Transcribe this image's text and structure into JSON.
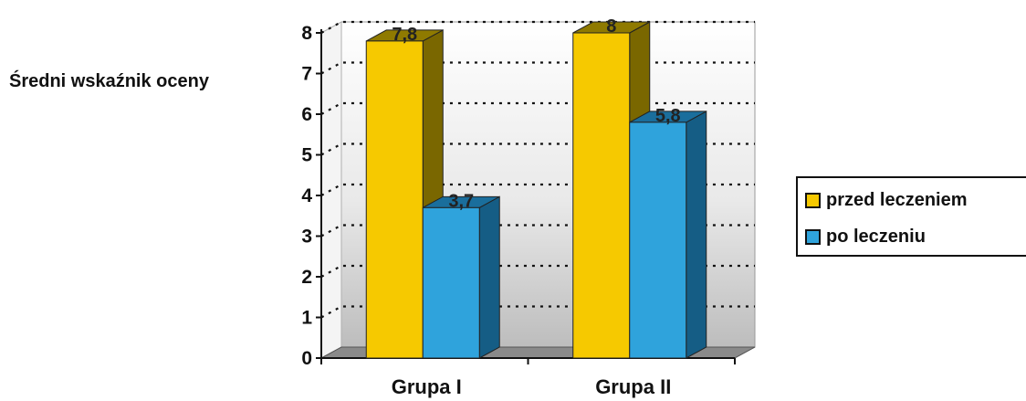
{
  "colors": {
    "before": "#f6c900",
    "after": "#2fa3dc"
  },
  "chart_data": {
    "type": "bar",
    "categories": [
      "Grupa I",
      "Grupa II"
    ],
    "series": [
      {
        "name": "przed leczeniem",
        "values": [
          7.8,
          8
        ],
        "labels": [
          "7,8",
          "8"
        ]
      },
      {
        "name": "po leczeniu",
        "values": [
          3.7,
          5.8
        ],
        "labels": [
          "3,7",
          "5,8"
        ]
      }
    ],
    "ylabel": "Średni wskaźnik oceny",
    "xlabel": "",
    "ylim": [
      0,
      8
    ],
    "yticks": [
      "0",
      "1",
      "2",
      "3",
      "4",
      "5",
      "6",
      "7",
      "8"
    ],
    "grid": true,
    "legend_position": "right",
    "style": "3d-column"
  }
}
